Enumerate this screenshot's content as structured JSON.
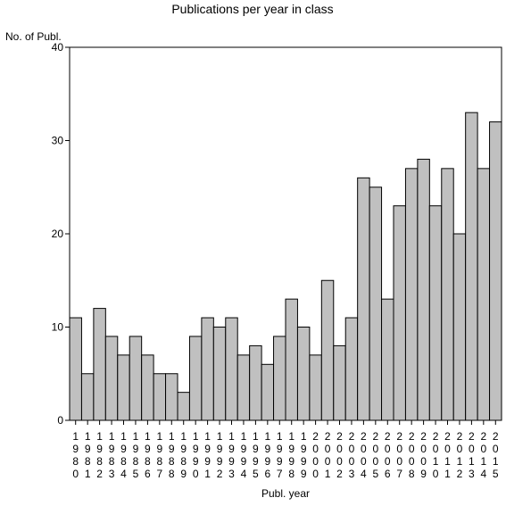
{
  "chart_data": {
    "type": "bar",
    "title": "Publications per year in class",
    "ylabel": "No. of Publ.",
    "xlabel": "Publ. year",
    "ylim": [
      0,
      40
    ],
    "yticks": [
      0,
      10,
      20,
      30,
      40
    ],
    "grid": false,
    "bar_color": "#c0c0c0",
    "categories": [
      "1980",
      "1981",
      "1982",
      "1983",
      "1984",
      "1985",
      "1986",
      "1987",
      "1988",
      "1989",
      "1990",
      "1991",
      "1992",
      "1993",
      "1994",
      "1995",
      "1996",
      "1997",
      "1998",
      "1999",
      "2000",
      "2001",
      "2002",
      "2003",
      "2004",
      "2005",
      "2006",
      "2007",
      "2008",
      "2009",
      "2010",
      "2011",
      "2012",
      "2013",
      "2014",
      "2015"
    ],
    "values": [
      11,
      5,
      12,
      9,
      7,
      9,
      7,
      5,
      5,
      3,
      9,
      11,
      10,
      11,
      7,
      8,
      6,
      9,
      13,
      10,
      7,
      15,
      8,
      11,
      26,
      25,
      13,
      23,
      27,
      28,
      23,
      27,
      20,
      33,
      27,
      32
    ]
  }
}
